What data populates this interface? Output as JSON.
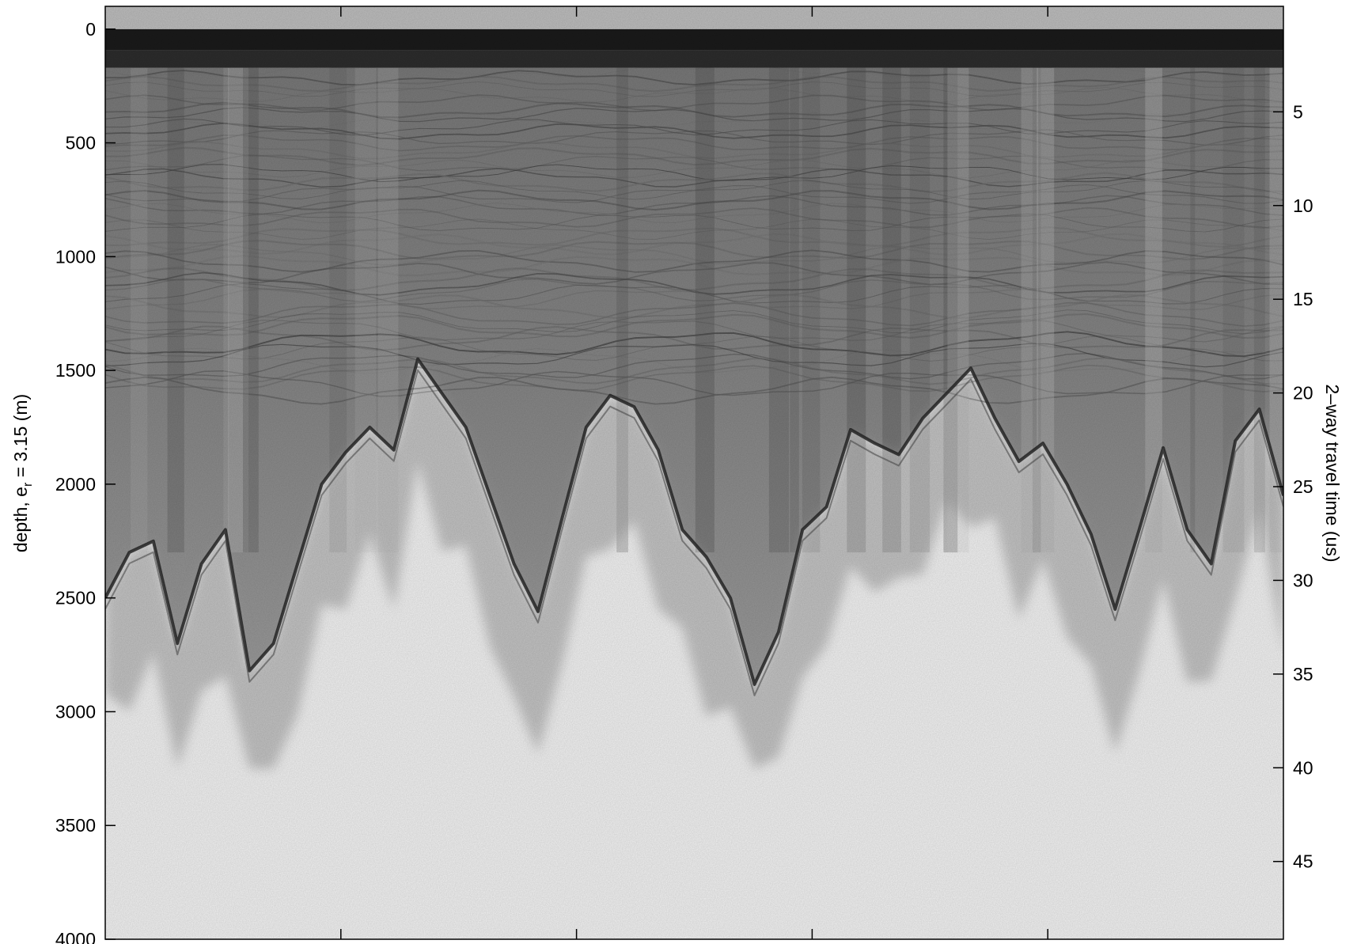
{
  "chart_data": {
    "type": "heatmap",
    "title": "",
    "colormap": "grayscale (dark = strong echo)",
    "grid": false,
    "legend": "none",
    "x_ticks": 5,
    "ylabel_left": {
      "text_before_sub": "depth, e",
      "subscript": "r",
      "text_after_sub": " = 3.15 (m)"
    },
    "ylabel_right": "2–way travel time (us)",
    "ylim_left": [
      4000,
      -100
    ],
    "ylim_right_approx": [
      49.15,
      -0.63
    ],
    "left_ticks": [
      {
        "value": 0,
        "label": "0"
      },
      {
        "value": 500,
        "label": "500"
      },
      {
        "value": 1000,
        "label": "1000"
      },
      {
        "value": 1500,
        "label": "1500"
      },
      {
        "value": 2000,
        "label": "2000"
      },
      {
        "value": 2500,
        "label": "2500"
      },
      {
        "value": 3000,
        "label": "3000"
      },
      {
        "value": 3500,
        "label": "3500"
      },
      {
        "value": 4000,
        "label": "4000"
      }
    ],
    "right_ticks": [
      {
        "value": 5,
        "label": "5"
      },
      {
        "value": 10,
        "label": "10"
      },
      {
        "value": 15,
        "label": "15"
      },
      {
        "value": 20,
        "label": "20"
      },
      {
        "value": 25,
        "label": "25"
      },
      {
        "value": 30,
        "label": "30"
      },
      {
        "value": 35,
        "label": "35"
      },
      {
        "value": 40,
        "label": "40"
      },
      {
        "value": 45,
        "label": "45"
      }
    ],
    "features": {
      "surface_reflection_depth_m": [
        0,
        170
      ],
      "layered_ice_depth_m": [
        170,
        1600
      ],
      "bed_profile_depth_m": [
        2500,
        2300,
        2250,
        2700,
        2350,
        2200,
        2820,
        2700,
        2350,
        2000,
        1860,
        1750,
        1850,
        1450,
        1600,
        1750,
        2050,
        2350,
        2560,
        2150,
        1750,
        1610,
        1660,
        1850,
        2200,
        2320,
        2500,
        2880,
        2650,
        2200,
        2100,
        1760,
        1820,
        1870,
        1710,
        1600,
        1490,
        1710,
        1900,
        1820,
        2000,
        2220,
        2550,
        2200,
        1840,
        2200,
        2350,
        1810,
        1670,
        2050
      ]
    }
  }
}
